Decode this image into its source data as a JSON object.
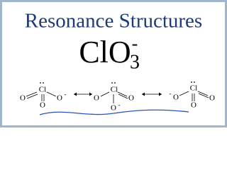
{
  "header": {
    "title": "Resonance Structures"
  },
  "formula": {
    "base": "ClO",
    "subscript": "3",
    "charge": "-"
  },
  "structures": [
    {
      "atoms": [
        "Cl",
        "O",
        "O",
        "O"
      ],
      "charges": [
        "-"
      ]
    },
    {
      "atoms": [
        "Cl",
        "O",
        "O",
        "O"
      ],
      "charges": [
        "-"
      ]
    },
    {
      "atoms": [
        "Cl",
        "O",
        "O",
        "O"
      ],
      "charges": [
        "-"
      ]
    }
  ]
}
